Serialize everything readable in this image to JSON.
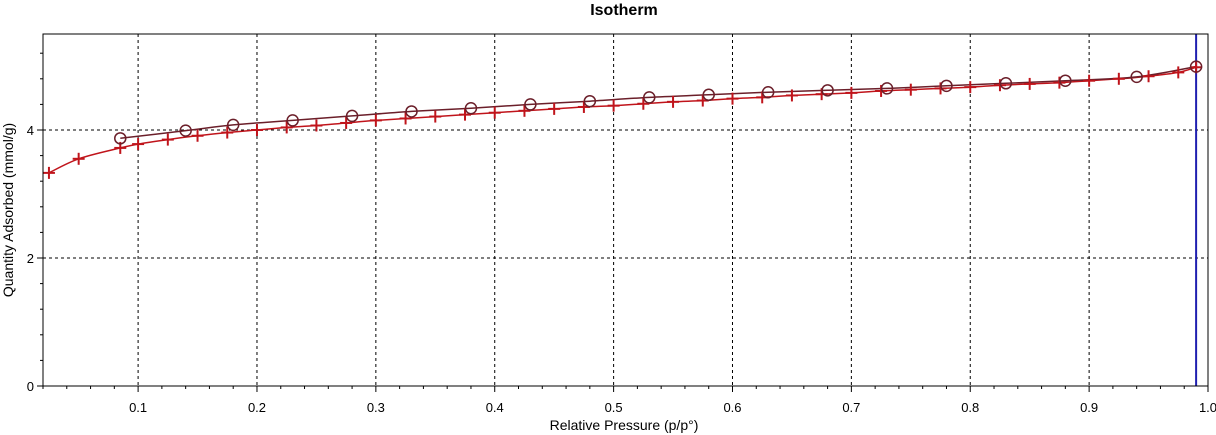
{
  "chart_data": {
    "type": "scatter",
    "title": "Isotherm",
    "xlabel": "Relative Pressure (p/p°)",
    "ylabel": "Quantity Adsorbed (mmol/g)",
    "xlim": [
      0.02,
      1.0
    ],
    "ylim": [
      0,
      5.5
    ],
    "xticks": [
      0.1,
      0.2,
      0.3,
      0.4,
      0.5,
      0.6,
      0.7,
      0.8,
      0.9,
      1.0
    ],
    "xtick_labels": [
      "0.1",
      "0.2",
      "0.3",
      "0.4",
      "0.5",
      "0.6",
      "0.7",
      "0.8",
      "0.9",
      "1.0"
    ],
    "yticks": [
      0,
      2,
      4
    ],
    "ytick_labels": [
      "0",
      "2",
      "4"
    ],
    "grid": true,
    "vertical_line": {
      "x": 0.99,
      "color": "#1f1fb0"
    },
    "series": [
      {
        "marker": "plus",
        "color": "#c0141b",
        "x": [
          0.025,
          0.05,
          0.085,
          0.1,
          0.125,
          0.15,
          0.175,
          0.2,
          0.225,
          0.25,
          0.275,
          0.3,
          0.325,
          0.35,
          0.375,
          0.4,
          0.425,
          0.45,
          0.475,
          0.5,
          0.525,
          0.55,
          0.575,
          0.6,
          0.625,
          0.65,
          0.675,
          0.7,
          0.725,
          0.75,
          0.775,
          0.8,
          0.825,
          0.85,
          0.875,
          0.9,
          0.925,
          0.95,
          0.975,
          0.99
        ],
        "y": [
          3.33,
          3.55,
          3.72,
          3.78,
          3.85,
          3.91,
          3.96,
          4.0,
          4.04,
          4.07,
          4.11,
          4.15,
          4.18,
          4.21,
          4.24,
          4.27,
          4.3,
          4.33,
          4.36,
          4.38,
          4.41,
          4.44,
          4.46,
          4.49,
          4.51,
          4.54,
          4.56,
          4.58,
          4.61,
          4.63,
          4.65,
          4.67,
          4.7,
          4.72,
          4.74,
          4.77,
          4.8,
          4.84,
          4.9,
          4.98
        ]
      },
      {
        "marker": "circle",
        "color": "#6b1f2a",
        "x": [
          0.085,
          0.14,
          0.18,
          0.23,
          0.28,
          0.33,
          0.38,
          0.43,
          0.48,
          0.53,
          0.58,
          0.63,
          0.68,
          0.73,
          0.78,
          0.83,
          0.88,
          0.94,
          0.99
        ],
        "y": [
          3.87,
          3.99,
          4.08,
          4.15,
          4.22,
          4.29,
          4.34,
          4.4,
          4.45,
          4.51,
          4.55,
          4.59,
          4.62,
          4.65,
          4.69,
          4.73,
          4.77,
          4.83,
          4.99
        ]
      }
    ]
  }
}
